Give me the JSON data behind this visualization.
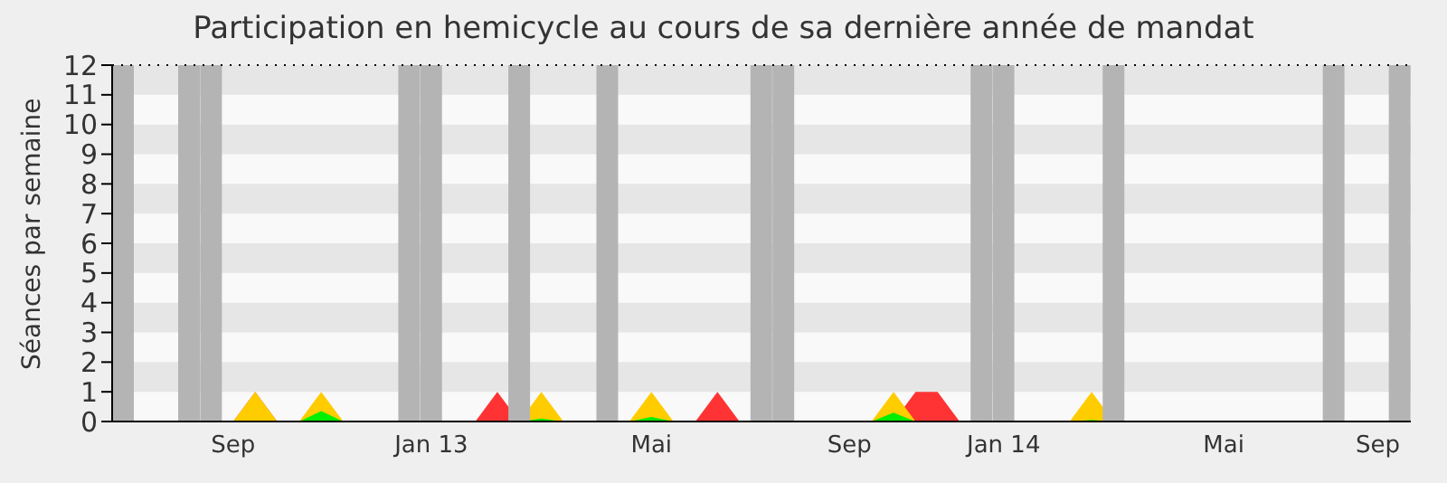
{
  "chart_data": {
    "type": "area",
    "title": "Participation en hemicycle au cours de sa dernière année de mandat",
    "ylabel": "Séances par semaine",
    "categories": [
      null,
      null,
      null,
      null,
      null,
      "Sep",
      null,
      null,
      null,
      null,
      null,
      null,
      null,
      null,
      "Jan 13",
      null,
      null,
      null,
      null,
      null,
      null,
      null,
      null,
      null,
      "Mai",
      null,
      null,
      null,
      null,
      null,
      null,
      null,
      null,
      "Sep",
      null,
      null,
      null,
      null,
      null,
      null,
      "Jan 14",
      null,
      null,
      null,
      null,
      null,
      null,
      null,
      null,
      null,
      "Mai",
      null,
      null,
      null,
      null,
      null,
      null,
      "Sep",
      null
    ],
    "ylim": [
      0,
      12
    ],
    "yticks": [
      0,
      1,
      2,
      3,
      4,
      5,
      6,
      7,
      8,
      9,
      10,
      11,
      12
    ],
    "series": [
      {
        "color": "#ff3333",
        "values": [
          0,
          0,
          0,
          0,
          0,
          0,
          1,
          0,
          0,
          0,
          0,
          0,
          0,
          0,
          0,
          0,
          0,
          1,
          0,
          0,
          0,
          0,
          0,
          0,
          0,
          0,
          0,
          1,
          0,
          0,
          0,
          0,
          0,
          0,
          0,
          0,
          1,
          1,
          0,
          0,
          0,
          0,
          0,
          0,
          0,
          0,
          0,
          0,
          0,
          0,
          0,
          0,
          0,
          0,
          0,
          0,
          0,
          0,
          0
        ]
      },
      {
        "color": "#ffcc00",
        "values": [
          null,
          null,
          null,
          null,
          null,
          0,
          1,
          0,
          0,
          1,
          0,
          null,
          null,
          null,
          null,
          null,
          null,
          null,
          0,
          1,
          0,
          null,
          null,
          0,
          1,
          0,
          null,
          null,
          null,
          null,
          null,
          null,
          null,
          null,
          0,
          1,
          0,
          null,
          null,
          null,
          null,
          null,
          null,
          0,
          1,
          0,
          null,
          null,
          null,
          null,
          null,
          null,
          null,
          null,
          null,
          null,
          null,
          null,
          null
        ]
      },
      {
        "color": "#00ee00",
        "values": [
          null,
          null,
          null,
          null,
          null,
          null,
          null,
          null,
          0,
          0.35,
          0,
          null,
          null,
          null,
          null,
          null,
          null,
          null,
          0,
          0.1,
          0,
          null,
          null,
          0,
          0.15,
          0,
          null,
          null,
          null,
          null,
          null,
          null,
          null,
          null,
          0,
          0.3,
          0,
          null,
          null,
          null,
          null,
          null,
          null,
          0,
          0.05,
          0,
          null,
          null,
          null,
          null,
          null,
          null,
          null,
          null,
          null,
          null,
          null,
          null,
          null
        ]
      },
      {
        "type": "bar",
        "color": "#b4b4b4",
        "values": [
          12,
          0,
          0,
          12,
          12,
          0,
          0,
          0,
          0,
          0,
          0,
          0,
          0,
          12,
          12,
          0,
          0,
          0,
          12,
          0,
          0,
          0,
          12,
          0,
          0,
          0,
          0,
          0,
          0,
          12,
          12,
          0,
          0,
          0,
          0,
          0,
          0,
          0,
          0,
          12,
          12,
          0,
          0,
          0,
          0,
          12,
          0,
          0,
          0,
          0,
          0,
          0,
          0,
          0,
          0,
          12,
          0,
          0,
          12
        ]
      }
    ],
    "bands": [
      {
        "axis": "y",
        "from": 1,
        "to": 2,
        "color": "#e6e6e6"
      },
      {
        "axis": "y",
        "from": 3,
        "to": 4,
        "color": "#e6e6e6"
      },
      {
        "axis": "y",
        "from": 5,
        "to": 6,
        "color": "#e6e6e6"
      },
      {
        "axis": "y",
        "from": 7,
        "to": 8,
        "color": "#e6e6e6"
      },
      {
        "axis": "y",
        "from": 9,
        "to": 10,
        "color": "#e6e6e6"
      },
      {
        "axis": "y",
        "from": 11,
        "to": 12,
        "color": "#e6e6e6"
      }
    ],
    "ref_lines": [
      {
        "axis": "y",
        "value": 12,
        "color": "#000000",
        "line_style": "dotted"
      }
    ]
  }
}
